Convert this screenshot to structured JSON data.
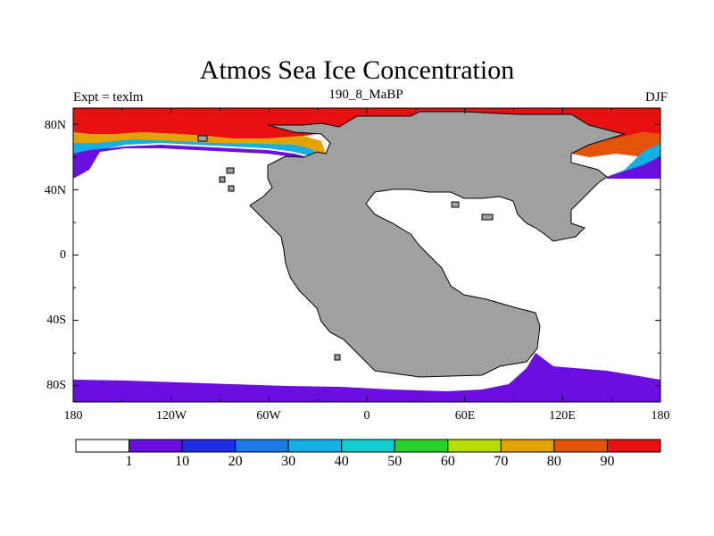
{
  "title": "Atmos Sea Ice Concentration",
  "subtitle_left": "Expt = texlm",
  "subtitle_center": "190_8_MaBP",
  "subtitle_right": "DJF",
  "lat_labels": [
    "80N",
    "40N",
    "0",
    "40S",
    "80S"
  ],
  "lon_labels": [
    "180",
    "120W",
    "60W",
    "0",
    "60E",
    "120E",
    "180"
  ],
  "colorbar": {
    "labels": [
      "1",
      "10",
      "20",
      "30",
      "40",
      "50",
      "60",
      "70",
      "80",
      "90"
    ],
    "colors": [
      "#ffffff",
      "#6a0fe0",
      "#1f2ee6",
      "#1a7ce8",
      "#13b0e6",
      "#10cfcf",
      "#2ad02a",
      "#b6df00",
      "#e2a200",
      "#e35408",
      "#e81010"
    ]
  },
  "colors": {
    "land": "#a0a0a0",
    "ice_low": "#6a0fe0",
    "ice_high": "#e81010"
  }
}
